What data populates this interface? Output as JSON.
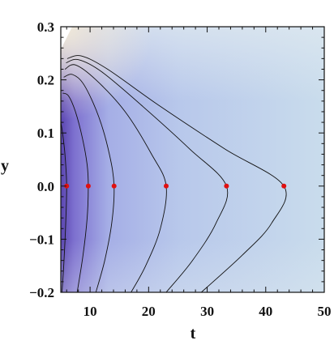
{
  "chart_data": {
    "type": "contour",
    "xlabel": "t",
    "ylabel": "y",
    "xlim": [
      5,
      50
    ],
    "ylim": [
      -0.2,
      0.3
    ],
    "x_ticks": [
      10,
      20,
      30,
      40,
      50
    ],
    "x_tick_labels": [
      "10",
      "20",
      "30",
      "40",
      "50"
    ],
    "y_ticks": [
      -0.2,
      -0.1,
      0.0,
      0.1,
      0.2,
      0.3
    ],
    "y_tick_labels": [
      "−0.2",
      "−0.1",
      "0.0",
      "0.1",
      "0.2",
      "0.3"
    ],
    "colors": {
      "deep": "#5a45b0",
      "mid": "#a6b4e6",
      "light": "#c9dcec",
      "corner": "#f2ead8",
      "points": "#e01010",
      "contours": "#111111"
    },
    "points": [
      {
        "x": 6.0,
        "y": 0.0
      },
      {
        "x": 9.7,
        "y": 0.0
      },
      {
        "x": 14.1,
        "y": 0.0
      },
      {
        "x": 23.0,
        "y": 0.0
      },
      {
        "x": 33.3,
        "y": 0.0
      },
      {
        "x": 43.1,
        "y": 0.0
      }
    ],
    "contours": [
      {
        "tip_x": 6.0,
        "top": [
          [
            5.0,
            0.12
          ],
          [
            5.3,
            0.1
          ],
          [
            5.7,
            0.06
          ],
          [
            6.0,
            0.0
          ]
        ],
        "bottom": [
          [
            6.0,
            0.0
          ],
          [
            5.8,
            -0.08
          ],
          [
            5.5,
            -0.15
          ],
          [
            5.2,
            -0.2
          ]
        ]
      },
      {
        "tip_x": 9.7,
        "top": [
          [
            5.3,
            0.175
          ],
          [
            6.3,
            0.17
          ],
          [
            7.5,
            0.14
          ],
          [
            8.7,
            0.09
          ],
          [
            9.5,
            0.04
          ],
          [
            9.7,
            0.0
          ]
        ],
        "bottom": [
          [
            9.7,
            0.0
          ],
          [
            9.5,
            -0.06
          ],
          [
            8.8,
            -0.13
          ],
          [
            7.8,
            -0.2
          ]
        ]
      },
      {
        "tip_x": 14.1,
        "top": [
          [
            5.5,
            0.205
          ],
          [
            7.0,
            0.21
          ],
          [
            9.0,
            0.19
          ],
          [
            11.5,
            0.13
          ],
          [
            13.3,
            0.06
          ],
          [
            14.1,
            0.0
          ]
        ],
        "bottom": [
          [
            14.1,
            0.0
          ],
          [
            13.7,
            -0.07
          ],
          [
            12.5,
            -0.14
          ],
          [
            11.0,
            -0.2
          ]
        ]
      },
      {
        "tip_x": 23.0,
        "top": [
          [
            5.7,
            0.22
          ],
          [
            7.5,
            0.228
          ],
          [
            11.0,
            0.2
          ],
          [
            16.0,
            0.14
          ],
          [
            20.5,
            0.06
          ],
          [
            23.0,
            0.0
          ]
        ],
        "bottom": [
          [
            23.0,
            0.0
          ],
          [
            22.0,
            -0.08
          ],
          [
            19.5,
            -0.15
          ],
          [
            17.0,
            -0.2
          ]
        ]
      },
      {
        "tip_x": 33.3,
        "top": [
          [
            5.9,
            0.232
          ],
          [
            8.0,
            0.238
          ],
          [
            12.0,
            0.215
          ],
          [
            19.0,
            0.15
          ],
          [
            27.0,
            0.07
          ],
          [
            33.3,
            0.0
          ]
        ],
        "bottom": [
          [
            33.3,
            0.0
          ],
          [
            31.5,
            -0.07
          ],
          [
            27.5,
            -0.14
          ],
          [
            23.0,
            -0.2
          ]
        ]
      },
      {
        "tip_x": 43.1,
        "top": [
          [
            6.1,
            0.24
          ],
          [
            8.5,
            0.245
          ],
          [
            13.0,
            0.22
          ],
          [
            22.0,
            0.15
          ],
          [
            33.0,
            0.07
          ],
          [
            43.1,
            0.0
          ]
        ],
        "bottom": [
          [
            43.1,
            0.0
          ],
          [
            41.0,
            -0.07
          ],
          [
            36.0,
            -0.13
          ],
          [
            29.0,
            -0.2
          ]
        ]
      }
    ]
  }
}
